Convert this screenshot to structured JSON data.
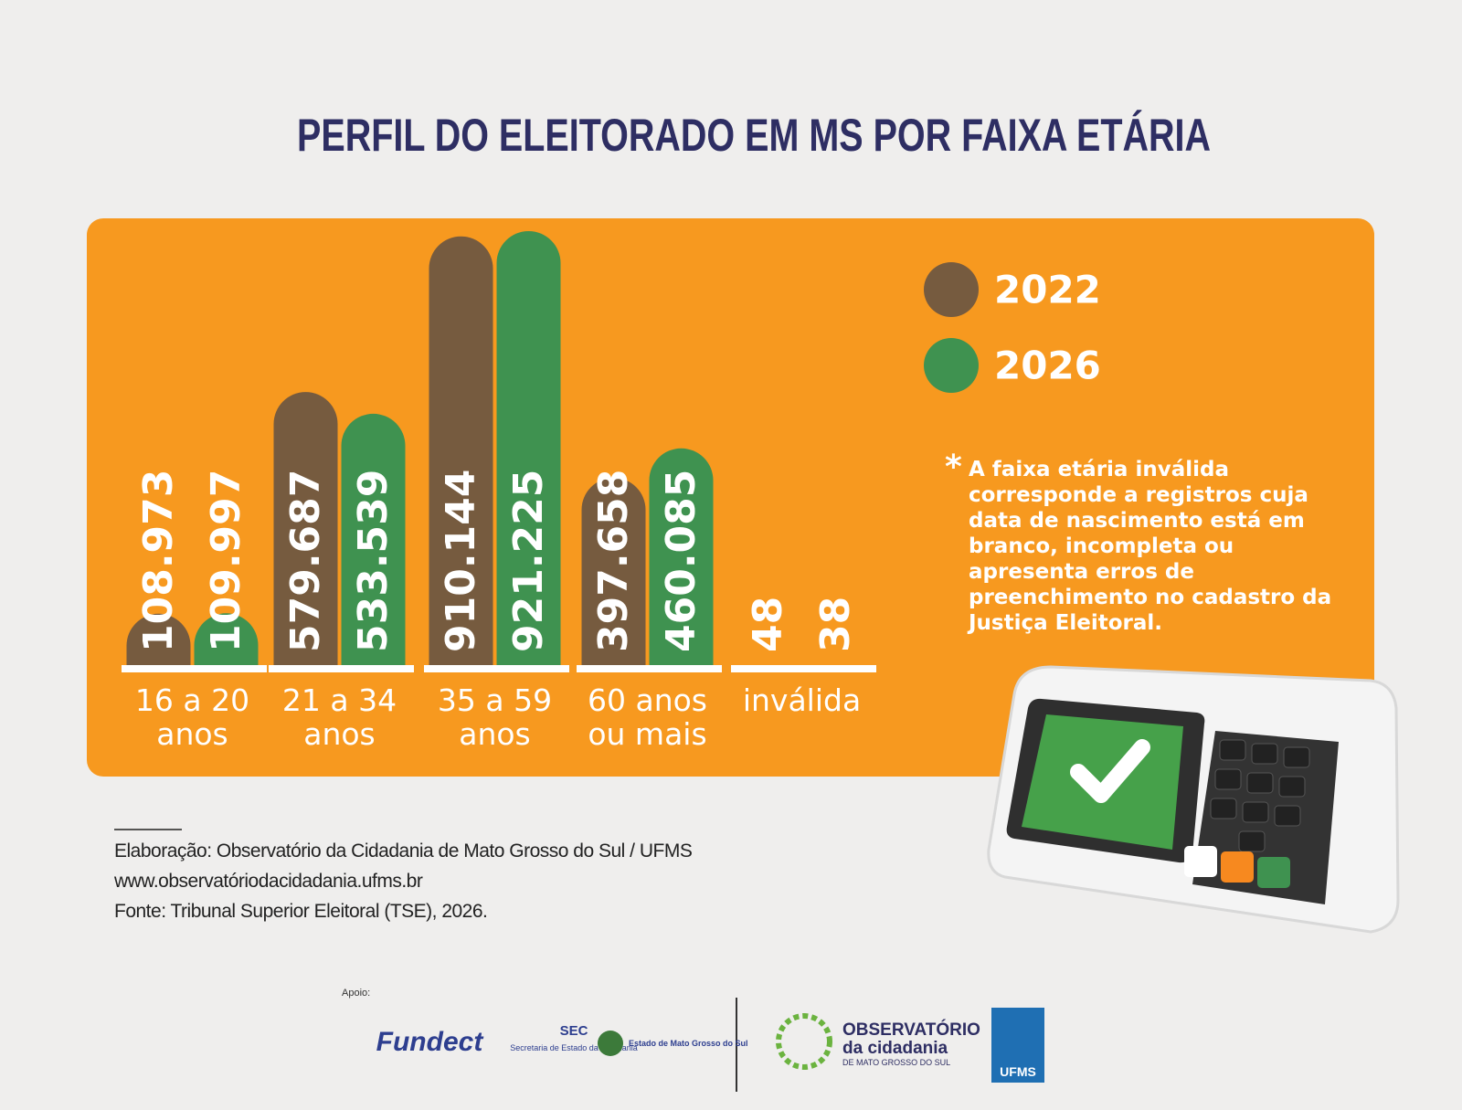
{
  "chart_data": {
    "type": "bar",
    "title": "PERFIL DO ELEITORADO EM MS POR FAIXA ETÁRIA",
    "categories": [
      "16 a 20 anos",
      "21 a 34 anos",
      "35 a 59 anos",
      "60 anos ou mais",
      "inválida"
    ],
    "series": [
      {
        "name": "2022",
        "color": "#765b3f",
        "values": [
          108973,
          579687,
          910144,
          397658,
          48
        ],
        "value_labels": [
          "108.973",
          "579.687",
          "910.144",
          "397.658",
          "48"
        ]
      },
      {
        "name": "2026",
        "color": "#3f9250",
        "values": [
          109997,
          533539,
          921225,
          460085,
          38
        ],
        "value_labels": [
          "109.997",
          "533.539",
          "921.225",
          "460.085",
          "38"
        ]
      }
    ],
    "note_marker": "*",
    "note": "A faixa etária inválida corresponde a registros cuja data de nascimento está em branco, incompleta ou apresenta erros de preenchimento no cadastro da Justiça Eleitoral."
  },
  "footer": {
    "lines": [
      "Elaboração: Observatório da Cidadania de Mato Grosso do Sul / UFMS",
      "www.observatóriodacidadania.ufms.br",
      "Fonte: Tribunal Superior Eleitoral (TSE), 2026."
    ]
  },
  "logos": {
    "support": "Apoio:",
    "fundect": "Fundect",
    "sec": "SEC",
    "sec_name": "Secretaria de Estado da Cidadania",
    "state": "Estado de Mato Grosso do Sul",
    "observatorio": "OBSERVATÓRIO",
    "observatorio_sub": "da cidadania",
    "observatorio_place": "DE MATO GROSSO DO SUL",
    "ufms": "UFMS"
  }
}
